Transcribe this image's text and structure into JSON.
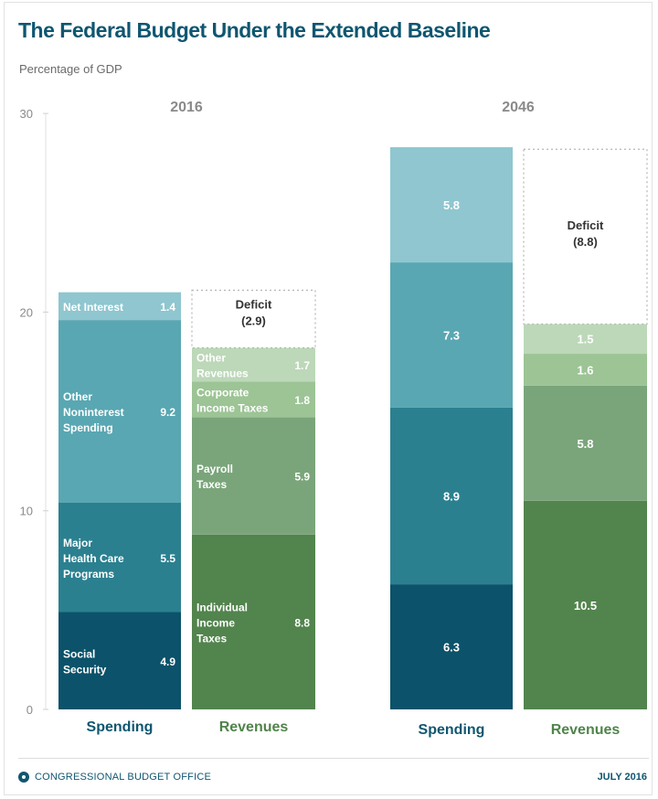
{
  "chart_data": {
    "type": "bar",
    "subtype": "stacked",
    "title": "The Federal Budget Under the Extended Baseline",
    "ylabel": "Percentage of GDP",
    "xlabel": "",
    "ylim": [
      0,
      30
    ],
    "yticks": [
      0,
      10,
      20,
      30
    ],
    "grid": false,
    "groups": [
      {
        "year": "2016",
        "bars": [
          {
            "name": "Spending",
            "label_color": "#0f5670",
            "segments": [
              {
                "label": "Social Security",
                "value": 4.9,
                "display": "4.9",
                "color": "#0b526a"
              },
              {
                "label": "Major Health Care Programs",
                "value": 5.5,
                "display": "5.5",
                "color": "#2b8090"
              },
              {
                "label": "Other Noninterest Spending",
                "value": 9.2,
                "display": "9.2",
                "color": "#59a7b2"
              },
              {
                "label": "Net Interest",
                "value": 1.4,
                "display": "1.4",
                "color": "#8fc6cf"
              }
            ]
          },
          {
            "name": "Revenues",
            "label_color": "#4f8449",
            "segments": [
              {
                "label": "Individual Income Taxes",
                "value": 8.8,
                "display": "8.8",
                "color": "#52844d"
              },
              {
                "label": "Payroll Taxes",
                "value": 5.9,
                "display": "5.9",
                "color": "#7aa57a"
              },
              {
                "label": "Corporate Income Taxes",
                "value": 1.8,
                "display": "1.8",
                "color": "#9cc495"
              },
              {
                "label": "Other Revenues",
                "value": 1.7,
                "display": "1.7",
                "color": "#bcd8b8"
              }
            ],
            "deficit": {
              "label": "Deficit",
              "value": 2.9,
              "display": "(2.9)"
            }
          }
        ]
      },
      {
        "year": "2046",
        "bars": [
          {
            "name": "Spending",
            "label_color": "#0f5670",
            "segments": [
              {
                "label": "Social Security",
                "value": 6.3,
                "display": "6.3",
                "color": "#0b526a"
              },
              {
                "label": "Major Health Care Programs",
                "value": 8.9,
                "display": "8.9",
                "color": "#2b8090"
              },
              {
                "label": "Other Noninterest Spending",
                "value": 7.3,
                "display": "7.3",
                "color": "#59a7b2"
              },
              {
                "label": "Net Interest",
                "value": 5.8,
                "display": "5.8",
                "color": "#8fc6cf"
              }
            ]
          },
          {
            "name": "Revenues",
            "label_color": "#4f8449",
            "segments": [
              {
                "label": "Individual Income Taxes",
                "value": 10.5,
                "display": "10.5",
                "color": "#52844d"
              },
              {
                "label": "Payroll Taxes",
                "value": 5.8,
                "display": "5.8",
                "color": "#7aa57a"
              },
              {
                "label": "Corporate Income Taxes",
                "value": 1.6,
                "display": "1.6",
                "color": "#9cc495"
              },
              {
                "label": "Other Revenues",
                "value": 1.5,
                "display": "1.5",
                "color": "#bcd8b8"
              }
            ],
            "deficit": {
              "label": "Deficit",
              "value": 8.8,
              "display": "(8.8)"
            }
          }
        ]
      }
    ],
    "segment_labels_2016": {
      "Social Security": [
        "Social",
        "Security"
      ],
      "Major Health Care Programs": [
        "Major",
        "Health Care",
        "Programs"
      ],
      "Other Noninterest Spending": [
        "Other",
        "Noninterest",
        "Spending"
      ],
      "Net Interest": [
        "Net Interest"
      ],
      "Individual Income Taxes": [
        "Individual",
        "Income",
        "Taxes"
      ],
      "Payroll Taxes": [
        "Payroll",
        "Taxes"
      ],
      "Corporate Income Taxes": [
        "Corporate",
        "Income Taxes"
      ],
      "Other Revenues": [
        "Other",
        "Revenues"
      ]
    }
  },
  "footer": {
    "organization": "CONGRESSIONAL BUDGET OFFICE",
    "date": "JULY 2016"
  },
  "colors": {
    "title": "#0f5670",
    "axis_text": "#8a8a8a",
    "deficit_border": "#b5b5b5",
    "deficit_text": "#333333"
  }
}
